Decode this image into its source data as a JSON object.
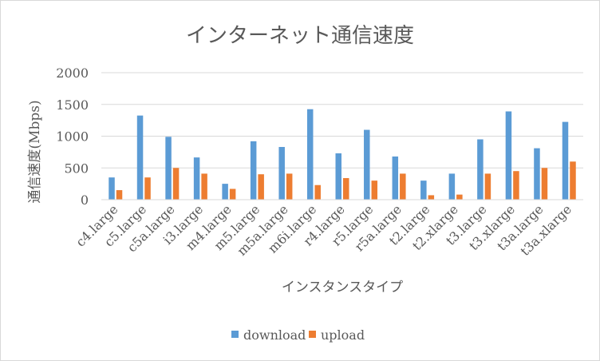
{
  "chart_data": {
    "type": "bar",
    "title": "インターネット通信速度",
    "xlabel": "インスタンスタイプ",
    "ylabel": "通信速度(Mbps)",
    "ylim": [
      0,
      2000
    ],
    "yticks": [
      0,
      500,
      1000,
      1500,
      2000
    ],
    "ytick_labels": [
      "0",
      "500",
      "1000",
      "1500",
      "2000"
    ],
    "grid": true,
    "legend_position": "bottom",
    "categories": [
      "c4.large",
      "c5.large",
      "c5a.large",
      "i3.large",
      "m4.large",
      "m5.large",
      "m5a.large",
      "m6i.large",
      "r4.large",
      "r5.large",
      "r5a.large",
      "t2.large",
      "t2.xlarge",
      "t3.large",
      "t3.xlarge",
      "t3a.large",
      "t3a.xlarge"
    ],
    "series": [
      {
        "name": "download",
        "color": "#5b9bd5",
        "values": [
          350,
          1325,
          990,
          665,
          250,
          920,
          830,
          1425,
          730,
          1100,
          680,
          300,
          410,
          950,
          1390,
          810,
          1225
        ]
      },
      {
        "name": "upload",
        "color": "#ed7d31",
        "values": [
          150,
          350,
          500,
          410,
          170,
          400,
          410,
          230,
          340,
          300,
          410,
          70,
          80,
          410,
          450,
          500,
          600
        ]
      }
    ]
  }
}
